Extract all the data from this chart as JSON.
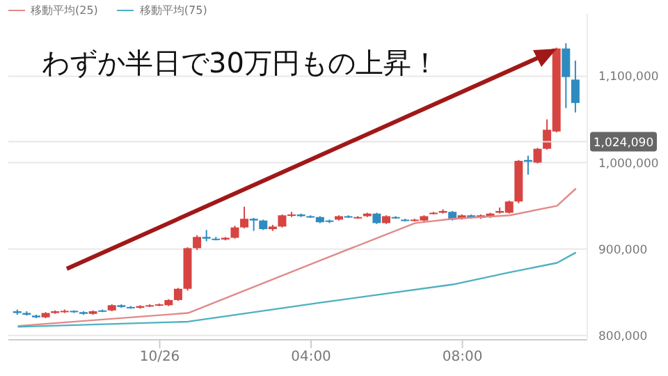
{
  "chart_data": {
    "type": "candlestick",
    "title": "わずか半日で30万円もの上昇！",
    "legend": "top left",
    "grid": "y",
    "xlim": [
      -4,
      11.3
    ],
    "xticks": [
      {
        "value": 0,
        "label": "10/26"
      },
      {
        "value": 4,
        "label": "04:00"
      },
      {
        "value": 8,
        "label": "08:00"
      }
    ],
    "ylim": [
      795000,
      1172000
    ],
    "yticks": [
      {
        "value": 800000,
        "label": "800,000"
      },
      {
        "value": 900000,
        "label": "900,000"
      },
      {
        "value": 1000000,
        "label": "1,000,000"
      },
      {
        "value": 1100000,
        "label": "1,100,000"
      }
    ],
    "x": [
      -3.75,
      -3.5,
      -3.25,
      -3,
      -2.75,
      -2.5,
      -2.25,
      -2,
      -1.75,
      -1.5,
      -1.25,
      -1,
      -0.75,
      -0.5,
      -0.25,
      0,
      0.25,
      0.5,
      0.75,
      1,
      1.25,
      1.5,
      1.75,
      2,
      2.25,
      2.5,
      2.75,
      3,
      3.25,
      3.5,
      3.75,
      4,
      4.25,
      4.5,
      4.75,
      5,
      5.25,
      5.5,
      5.75,
      6,
      6.25,
      6.5,
      6.75,
      7,
      7.25,
      7.5,
      7.75,
      8,
      8.25,
      8.5,
      8.75,
      9,
      9.25,
      9.5,
      9.75,
      10,
      10.25,
      10.5,
      10.75,
      11
    ],
    "ohlc": [
      [
        828000,
        830000,
        824000,
        826000
      ],
      [
        826000,
        828000,
        823000,
        824000
      ],
      [
        823000,
        824000,
        820000,
        821000
      ],
      [
        821000,
        827000,
        820000,
        826000
      ],
      [
        826000,
        829000,
        825000,
        828000
      ],
      [
        828000,
        830000,
        826000,
        828500
      ],
      [
        828500,
        829000,
        826000,
        827000
      ],
      [
        827000,
        828000,
        824000,
        825000
      ],
      [
        825000,
        829000,
        824000,
        828000
      ],
      [
        829000,
        830000,
        827000,
        828000
      ],
      [
        829000,
        836000,
        828000,
        835000
      ],
      [
        835000,
        836000,
        832000,
        833000
      ],
      [
        833000,
        834000,
        831000,
        832000
      ],
      [
        832000,
        835000,
        831000,
        834000
      ],
      [
        834000,
        836000,
        833000,
        835000
      ],
      [
        835000,
        837000,
        834000,
        836000
      ],
      [
        835000,
        842000,
        834000,
        841000
      ],
      [
        841000,
        855000,
        840000,
        854000
      ],
      [
        854000,
        902000,
        852000,
        901000
      ],
      [
        901000,
        916000,
        899000,
        914000
      ],
      [
        914000,
        922000,
        909000,
        912000
      ],
      [
        912000,
        914000,
        910000,
        911000
      ],
      [
        911000,
        914000,
        910000,
        913000
      ],
      [
        913000,
        927000,
        912000,
        925000
      ],
      [
        925000,
        949000,
        924000,
        935000
      ],
      [
        935000,
        936000,
        921000,
        933000
      ],
      [
        933000,
        934000,
        922000,
        923000
      ],
      [
        923000,
        928000,
        921000,
        926000
      ],
      [
        926000,
        940000,
        925000,
        939000
      ],
      [
        939000,
        943000,
        937000,
        940000
      ],
      [
        940000,
        941000,
        937000,
        938000
      ],
      [
        938000,
        939000,
        936000,
        937000
      ],
      [
        937000,
        938000,
        930000,
        931000
      ],
      [
        933000,
        934000,
        930000,
        932000
      ],
      [
        934000,
        939000,
        933000,
        938000
      ],
      [
        938000,
        939000,
        936000,
        937000
      ],
      [
        936000,
        938000,
        935000,
        937000
      ],
      [
        938000,
        942000,
        937000,
        941000
      ],
      [
        941000,
        942000,
        929000,
        930000
      ],
      [
        930000,
        939000,
        929000,
        938000
      ],
      [
        937000,
        938000,
        935000,
        936000
      ],
      [
        934000,
        935000,
        932000,
        933000
      ],
      [
        933000,
        935000,
        932000,
        934000
      ],
      [
        933000,
        939000,
        932000,
        938000
      ],
      [
        941000,
        943000,
        940000,
        942000
      ],
      [
        942000,
        946000,
        941000,
        944000
      ],
      [
        943000,
        944000,
        933000,
        934000
      ],
      [
        935000,
        940000,
        934000,
        939000
      ],
      [
        939000,
        940000,
        935000,
        936000
      ],
      [
        936000,
        940000,
        935000,
        939000
      ],
      [
        937000,
        942000,
        936000,
        941000
      ],
      [
        942000,
        948000,
        941000,
        944000
      ],
      [
        942000,
        956000,
        941000,
        955000
      ],
      [
        955000,
        1003000,
        953000,
        1002000
      ],
      [
        1003000,
        1008000,
        986000,
        1001000
      ],
      [
        1000000,
        1017000,
        999000,
        1016000
      ],
      [
        1016000,
        1050000,
        1015000,
        1038000
      ],
      [
        1036000,
        1133000,
        1035000,
        1132000
      ],
      [
        1132000,
        1138000,
        1063000,
        1099000
      ],
      [
        1096000,
        1118000,
        1058000,
        1069000
      ]
    ],
    "colors": [
      "#2e8bc0",
      "#2e8bc0",
      "#2e8bc0",
      "#d64541",
      "#d64541",
      "#d64541",
      "#2e8bc0",
      "#2e8bc0",
      "#d64541",
      "#2e8bc0",
      "#d64541",
      "#2e8bc0",
      "#2e8bc0",
      "#d64541",
      "#d64541",
      "#d64541",
      "#d64541",
      "#d64541",
      "#d64541",
      "#d64541",
      "#2e8bc0",
      "#2e8bc0",
      "#d64541",
      "#d64541",
      "#d64541",
      "#2e8bc0",
      "#2e8bc0",
      "#d64541",
      "#d64541",
      "#d64541",
      "#2e8bc0",
      "#2e8bc0",
      "#2e8bc0",
      "#2e8bc0",
      "#d64541",
      "#2e8bc0",
      "#d64541",
      "#d64541",
      "#2e8bc0",
      "#d64541",
      "#2e8bc0",
      "#2e8bc0",
      "#d64541",
      "#d64541",
      "#d64541",
      "#d64541",
      "#2e8bc0",
      "#d64541",
      "#2e8bc0",
      "#d64541",
      "#d64541",
      "#d64541",
      "#d64541",
      "#d64541",
      "#2e8bc0",
      "#d64541",
      "#d64541",
      "#d64541",
      "#2e8bc0",
      "#2e8bc0"
    ],
    "series": [
      {
        "name": "移動平均(25)",
        "type": "line",
        "color": "#e08a8a",
        "x": [
          -3.75,
          0.75,
          4.25,
          6.75,
          7.75,
          9.25,
          10.5,
          11
        ],
        "values": [
          811000,
          826000,
          887000,
          930000,
          935000,
          939000,
          950000,
          970000
        ]
      },
      {
        "name": "移動平均(75)",
        "type": "line",
        "color": "#4fb0c0",
        "x": [
          -3.75,
          0.75,
          4.25,
          7.75,
          9.25,
          10.5,
          11
        ],
        "values": [
          810000,
          816000,
          838000,
          859000,
          873000,
          884000,
          896000
        ]
      }
    ],
    "ref_lines": [
      {
        "axis": "y",
        "value": 1024090,
        "label": "1,024,090",
        "color": "#e6e6e6"
      }
    ]
  }
}
